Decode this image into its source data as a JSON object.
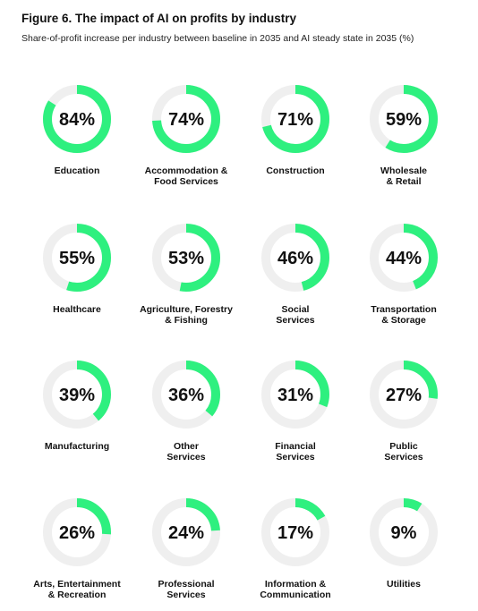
{
  "figure": {
    "title": "Figure 6. The impact of AI on profits by industry",
    "subtitle": "Share-of-profit increase per industry between baseline in 2035 and AI steady state in 2035 (%)"
  },
  "colors": {
    "arc": "#2ef07f",
    "track": "#efefef",
    "text": "#111111"
  },
  "chart_data": {
    "type": "donut-grid",
    "title": "Figure 6. The impact of AI on profits by industry",
    "subtitle": "Share-of-profit increase per industry between baseline in 2035 and AI steady state in 2035 (%)",
    "unit": "%",
    "items": [
      {
        "label": "Education",
        "value": 84,
        "value_label": "84%"
      },
      {
        "label": "Accommodation &\nFood Services",
        "value": 74,
        "value_label": "74%"
      },
      {
        "label": "Construction",
        "value": 71,
        "value_label": "71%"
      },
      {
        "label": "Wholesale\n& Retail",
        "value": 59,
        "value_label": "59%"
      },
      {
        "label": "Healthcare",
        "value": 55,
        "value_label": "55%"
      },
      {
        "label": "Agriculture, Forestry\n& Fishing",
        "value": 53,
        "value_label": "53%"
      },
      {
        "label": "Social\nServices",
        "value": 46,
        "value_label": "46%"
      },
      {
        "label": "Transportation\n& Storage",
        "value": 44,
        "value_label": "44%"
      },
      {
        "label": "Manufacturing",
        "value": 39,
        "value_label": "39%"
      },
      {
        "label": "Other\nServices",
        "value": 36,
        "value_label": "36%"
      },
      {
        "label": "Financial\nServices",
        "value": 31,
        "value_label": "31%"
      },
      {
        "label": "Public\nServices",
        "value": 27,
        "value_label": "27%"
      },
      {
        "label": "Arts, Entertainment\n& Recreation",
        "value": 26,
        "value_label": "26%"
      },
      {
        "label": "Professional\nServices",
        "value": 24,
        "value_label": "24%"
      },
      {
        "label": "Information &\nCommunication",
        "value": 17,
        "value_label": "17%"
      },
      {
        "label": "Utilities",
        "value": 9,
        "value_label": "9%"
      }
    ]
  }
}
